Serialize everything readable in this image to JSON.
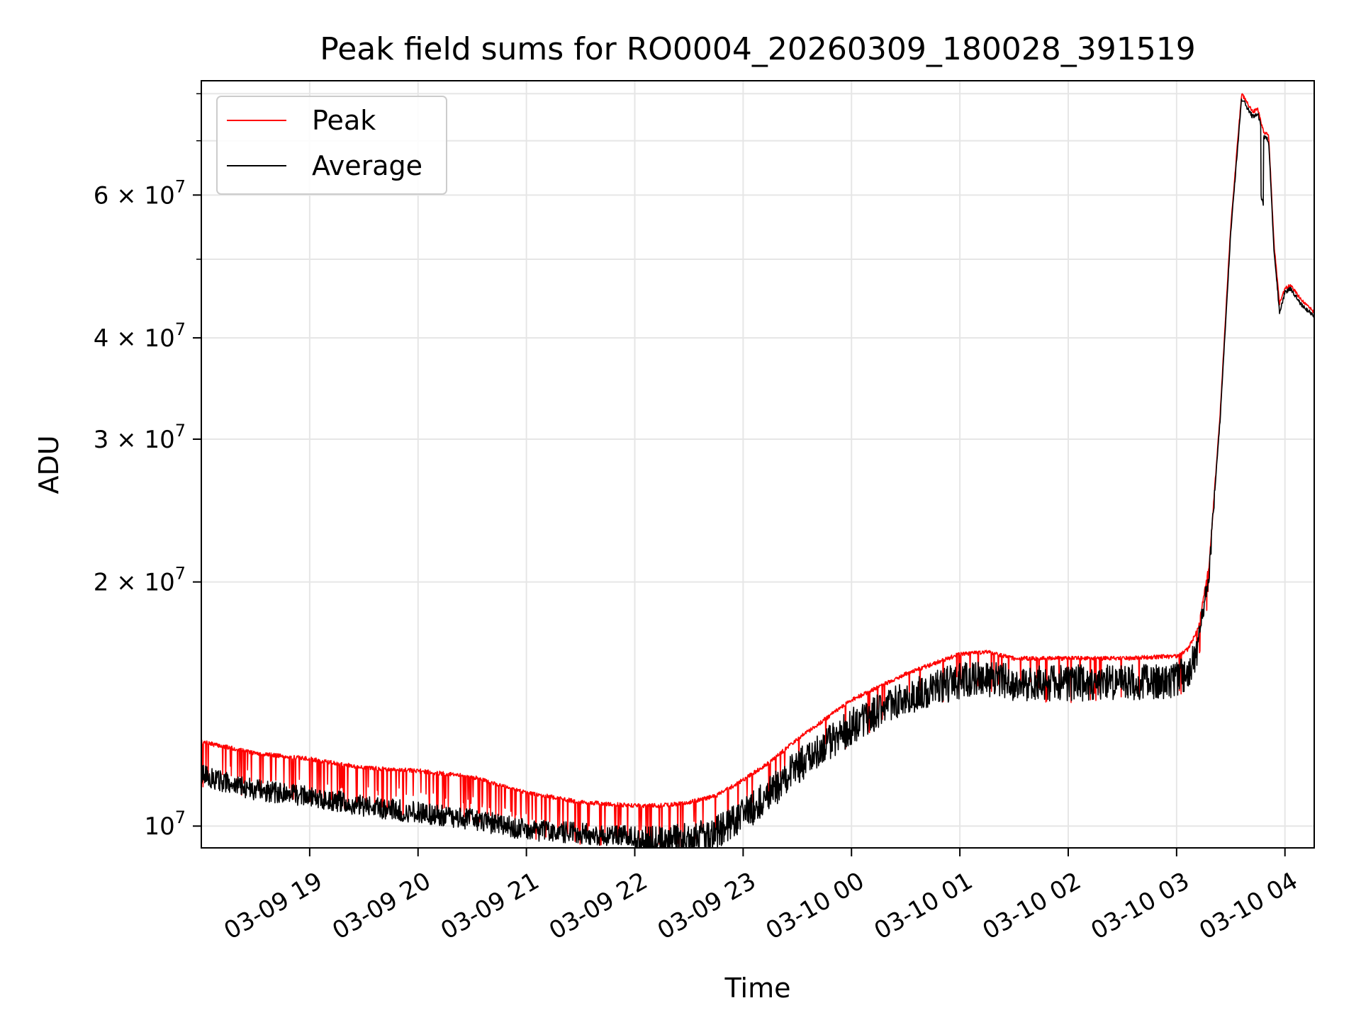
{
  "chart_data": {
    "type": "line",
    "title": "Peak field sums for RO0004_20260309_180028_391519",
    "xlabel": "Time",
    "ylabel": "ADU",
    "yscale": "log",
    "ylim": [
      9400000,
      83000000
    ],
    "xlim_hours": [
      18.0,
      28.27
    ],
    "grid": true,
    "legend_position": "upper-left",
    "x_ticks": [
      {
        "hour": 19,
        "label": "03-09 19"
      },
      {
        "hour": 20,
        "label": "03-09 20"
      },
      {
        "hour": 21,
        "label": "03-09 21"
      },
      {
        "hour": 22,
        "label": "03-09 22"
      },
      {
        "hour": 23,
        "label": "03-09 23"
      },
      {
        "hour": 24,
        "label": "03-10 00"
      },
      {
        "hour": 25,
        "label": "03-10 01"
      },
      {
        "hour": 26,
        "label": "03-10 02"
      },
      {
        "hour": 27,
        "label": "03-10 03"
      },
      {
        "hour": 28,
        "label": "03-10 04"
      }
    ],
    "y_ticks": [
      {
        "value": 10000000,
        "mantissa": "",
        "exp": "7"
      },
      {
        "value": 20000000,
        "mantissa": "2",
        "exp": "7"
      },
      {
        "value": 30000000,
        "mantissa": "3",
        "exp": "7"
      },
      {
        "value": 40000000,
        "mantissa": "4",
        "exp": "7"
      },
      {
        "value": 60000000,
        "mantissa": "6",
        "exp": "7"
      }
    ],
    "y_minor_ticks": [
      50000000,
      70000000,
      80000000
    ],
    "series": [
      {
        "name": "Peak",
        "color": "#ff0000",
        "hours": [
          18.0,
          18.25,
          18.5,
          19.0,
          19.5,
          20.0,
          20.5,
          21.0,
          21.5,
          22.0,
          22.25,
          22.5,
          22.75,
          23.0,
          23.25,
          23.5,
          24.0,
          24.5,
          25.0,
          25.25,
          25.5,
          26.0,
          26.5,
          27.0,
          27.1,
          27.2,
          27.3,
          27.4,
          27.5,
          27.6,
          27.7,
          27.75,
          27.8,
          27.85,
          27.9,
          27.95,
          28.0,
          28.05,
          28.1,
          28.15,
          28.27
        ],
        "values": [
          12700000,
          12500000,
          12300000,
          12100000,
          11800000,
          11700000,
          11500000,
          11000000,
          10700000,
          10600000,
          10600000,
          10700000,
          10900000,
          11400000,
          12000000,
          12800000,
          14300000,
          15400000,
          16300000,
          16400000,
          16100000,
          16100000,
          16100000,
          16200000,
          16500000,
          17500000,
          21000000,
          32000000,
          55000000,
          80000000,
          76000000,
          76500000,
          72000000,
          71000000,
          52000000,
          44000000,
          46000000,
          46500000,
          45500000,
          44500000,
          43000000
        ]
      },
      {
        "name": "Average",
        "color": "#000000",
        "hours": [
          18.0,
          18.25,
          18.5,
          19.0,
          19.5,
          20.0,
          20.5,
          21.0,
          21.5,
          22.0,
          22.25,
          22.5,
          22.75,
          23.0,
          23.25,
          23.5,
          24.0,
          24.5,
          25.0,
          25.25,
          25.5,
          26.0,
          26.5,
          27.0,
          27.1,
          27.2,
          27.3,
          27.4,
          27.5,
          27.6,
          27.7,
          27.75,
          27.8,
          27.85,
          27.9,
          27.95,
          28.0,
          28.05,
          28.1,
          28.15,
          28.27
        ],
        "values": [
          11700000,
          11400000,
          11200000,
          11000000,
          10700000,
          10500000,
          10300000,
          10000000,
          9900000,
          9800000,
          9800000,
          9900000,
          10100000,
          10600000,
          11300000,
          12200000,
          13700000,
          14900000,
          15600000,
          15700000,
          15500000,
          15500000,
          15500000,
          15600000,
          16000000,
          17200000,
          20800000,
          31500000,
          54000000,
          79000000,
          75000000,
          75500000,
          71000000,
          70000000,
          51000000,
          43000000,
          45500000,
          46000000,
          45000000,
          44000000,
          42500000
        ]
      }
    ]
  }
}
